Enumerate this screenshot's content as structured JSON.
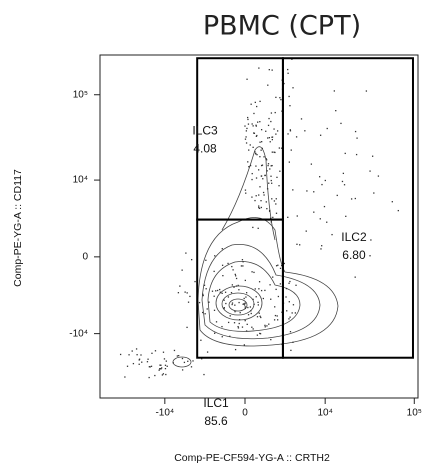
{
  "chart_data": {
    "type": "flow-gates",
    "title": "PBMC (CPT)",
    "x_label": "Comp-PE-CF594-YG-A :: CRTH2",
    "y_label": "Comp-PE-YG-A :: CD117",
    "xscale": "biexponential",
    "yscale": "biexponential",
    "xlim": [
      -53600,
      110000
    ],
    "ylim": [
      -57000,
      290000
    ],
    "xticks": [
      {
        "value": -10000,
        "label": "-10⁴"
      },
      0,
      {
        "value": 10000,
        "label": "10⁴"
      },
      {
        "value": 100000,
        "label": "10⁵"
      }
    ],
    "yticks": [
      {
        "value": -10000,
        "label": "-10⁴"
      },
      0,
      {
        "value": 10000,
        "label": "10⁴"
      },
      {
        "value": 100000,
        "label": "10⁵"
      }
    ],
    "gates": {
      "names": [
        "ILC3",
        "ILC2",
        "ILC1"
      ],
      "values": [
        4.08,
        6.8,
        85.6
      ],
      "value_labels": [
        "4.08",
        "6.80",
        "85.6"
      ],
      "x": [
        [
          -4050,
          2950
        ],
        [
          2950,
          96700
        ],
        [
          -4050,
          2950
        ]
      ],
      "y": [
        [
          3050,
          266000
        ],
        [
          -19300,
          266000
        ],
        [
          -19300,
          3050
        ]
      ]
    }
  }
}
